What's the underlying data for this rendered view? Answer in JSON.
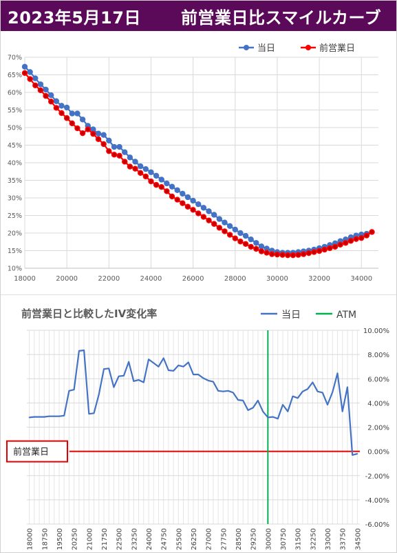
{
  "header": {
    "date": "2023年5月17日",
    "title": "前営業日比スマイルカーブ"
  },
  "colors": {
    "header_bg": "#5b0a5a",
    "series_today": "#4472c4",
    "series_prev": "#ff0000",
    "atm_line": "#00b050",
    "baseline": "#e00000"
  },
  "chart_data": [
    {
      "type": "scatter",
      "legend": [
        "当日",
        "前営業日"
      ],
      "legend_position": "top-right",
      "xlim": [
        18000,
        34500
      ],
      "ylim": [
        10,
        70
      ],
      "x_ticks": [
        "18000",
        "20000",
        "22000",
        "24000",
        "26000",
        "28000",
        "30000",
        "32000",
        "34000"
      ],
      "y_ticks": [
        "10%",
        "15%",
        "20%",
        "25%",
        "30%",
        "35%",
        "40%",
        "45%",
        "50%",
        "55%",
        "60%",
        "65%",
        "70%"
      ],
      "grid": true,
      "series": [
        {
          "name": "当日",
          "x": [
            18000,
            18250,
            18500,
            18750,
            19000,
            19250,
            19500,
            19750,
            20000,
            20250,
            20500,
            20750,
            21000,
            21250,
            21500,
            21750,
            22000,
            22250,
            22500,
            22750,
            23000,
            23250,
            23500,
            23750,
            24000,
            24250,
            24500,
            24750,
            25000,
            25250,
            25500,
            25750,
            26000,
            26250,
            26500,
            26750,
            27000,
            27250,
            27500,
            27750,
            28000,
            28250,
            28500,
            28750,
            29000,
            29250,
            29500,
            29750,
            30000,
            30250,
            30500,
            30750,
            31000,
            31250,
            31500,
            31750,
            32000,
            32250,
            32500,
            32750,
            33000,
            33250,
            33500,
            33750,
            34000,
            34250
          ],
          "values": [
            67.3,
            65.8,
            64.0,
            62.3,
            60.8,
            59.2,
            57.5,
            56.2,
            55.7,
            54.0,
            54.0,
            52.3,
            50.5,
            49.5,
            48.3,
            47.9,
            46.3,
            44.5,
            44.5,
            43.0,
            41.5,
            40.3,
            39.0,
            38.2,
            37.3,
            36.3,
            35.2,
            34.1,
            33.2,
            32.2,
            31.2,
            30.2,
            29.2,
            28.2,
            27.2,
            26.2,
            25.2,
            24.0,
            23.0,
            22.0,
            21.0,
            20.0,
            19.2,
            18.2,
            17.2,
            16.2,
            15.6,
            15.0,
            14.6,
            14.4,
            14.4,
            14.4,
            14.6,
            14.8,
            15.0,
            15.3,
            15.7,
            16.1,
            16.6,
            17.1,
            17.7,
            18.2,
            18.8,
            19.3,
            19.6,
            19.8
          ]
        },
        {
          "name": "前営業日",
          "x": [
            18000,
            18250,
            18500,
            18750,
            19000,
            19250,
            19500,
            19750,
            20000,
            20250,
            20500,
            20750,
            21000,
            21250,
            21500,
            21750,
            22000,
            22250,
            22500,
            22750,
            23000,
            23250,
            23500,
            23750,
            24000,
            24250,
            24500,
            24750,
            25000,
            25250,
            25500,
            25750,
            26000,
            26250,
            26500,
            26750,
            27000,
            27250,
            27500,
            27750,
            28000,
            28250,
            28500,
            28750,
            29000,
            29250,
            29500,
            29750,
            30000,
            30250,
            30500,
            30750,
            31000,
            31250,
            31500,
            31750,
            32000,
            32250,
            32500,
            32750,
            33000,
            33250,
            33500,
            33750,
            34000,
            34250,
            34500
          ],
          "values": [
            65.5,
            63.8,
            62.0,
            60.6,
            59.0,
            57.4,
            55.6,
            54.1,
            52.7,
            51.2,
            49.8,
            48.4,
            49.5,
            48.2,
            46.7,
            45.3,
            43.3,
            42.3,
            42.0,
            40.3,
            38.9,
            38.3,
            37.1,
            36.1,
            34.7,
            33.7,
            33.1,
            31.9,
            30.4,
            29.5,
            28.5,
            27.5,
            26.6,
            25.6,
            24.6,
            23.6,
            22.6,
            21.5,
            20.5,
            19.5,
            18.5,
            17.6,
            16.9,
            16.1,
            15.5,
            14.8,
            14.4,
            14.0,
            13.9,
            13.8,
            13.7,
            13.7,
            13.8,
            14.0,
            14.3,
            14.6,
            14.9,
            15.3,
            15.7,
            16.1,
            16.7,
            17.2,
            17.8,
            18.3,
            18.6,
            19.3,
            20.3
          ]
        }
      ]
    },
    {
      "type": "line",
      "title": "前営業日と比較したIV変化率",
      "legend": [
        "当日",
        "ATM"
      ],
      "legend_position": "top-right",
      "baseline_label": "前営業日",
      "atm_strike": 30000,
      "ylim": [
        -6,
        10
      ],
      "y_ticks": [
        "10.00%",
        "8.00%",
        "6.00%",
        "4.00%",
        "2.00%",
        "0.00%",
        "-2.00%",
        "-4.00%",
        "-6.00%"
      ],
      "x_ticks": [
        "18000",
        "18750",
        "19500",
        "20250",
        "21000",
        "21750",
        "22500",
        "23250",
        "24000",
        "24750",
        "25500",
        "26250",
        "27000",
        "27750",
        "28500",
        "29250",
        "30000",
        "30750",
        "31500",
        "32250",
        "33000",
        "33750",
        "34500"
      ],
      "series": [
        {
          "name": "当日",
          "x": [
            18000,
            18250,
            18500,
            18750,
            19000,
            19250,
            19500,
            19750,
            20000,
            20250,
            20500,
            20750,
            21000,
            21250,
            21500,
            21750,
            22000,
            22250,
            22500,
            22750,
            23000,
            23250,
            23500,
            23750,
            24000,
            24250,
            24500,
            24750,
            25000,
            25250,
            25500,
            25750,
            26000,
            26250,
            26500,
            26750,
            27000,
            27250,
            27500,
            27750,
            28000,
            28250,
            28500,
            28750,
            29000,
            29250,
            29500,
            29750,
            30000,
            30250,
            30500,
            30750,
            31000,
            31250,
            31500,
            31750,
            32000,
            32250,
            32500,
            32750,
            33000,
            33250,
            33500,
            33750,
            34000,
            34250,
            34500
          ],
          "values": [
            2.8,
            2.85,
            2.85,
            2.85,
            2.9,
            2.9,
            2.9,
            2.95,
            5.0,
            5.1,
            8.3,
            8.35,
            3.1,
            3.15,
            4.7,
            6.8,
            6.85,
            5.3,
            6.2,
            6.25,
            7.4,
            5.8,
            5.9,
            5.7,
            7.6,
            7.3,
            7.0,
            7.7,
            6.7,
            6.65,
            7.1,
            7.0,
            7.35,
            6.35,
            6.35,
            6.05,
            5.85,
            5.75,
            5.0,
            4.95,
            5.0,
            4.85,
            4.25,
            4.2,
            3.4,
            3.6,
            4.2,
            3.3,
            2.8,
            2.85,
            2.7,
            3.85,
            3.3,
            4.55,
            4.4,
            4.95,
            5.15,
            5.7,
            4.95,
            4.85,
            3.85,
            4.9,
            6.45,
            3.3,
            5.3,
            -0.3,
            -0.2
          ]
        }
      ]
    }
  ]
}
